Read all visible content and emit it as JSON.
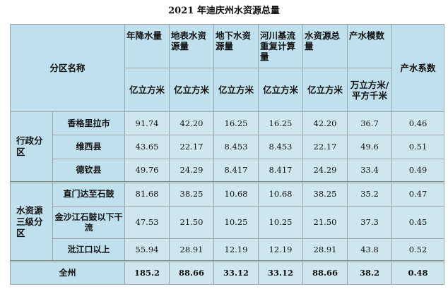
{
  "title": "2021 年迪庆州水资源总量",
  "header": {
    "region_label": "分区名称",
    "columns": [
      {
        "name": "年降水量",
        "unit": "亿立方米"
      },
      {
        "name": "地表水资源量",
        "unit": "亿立方米"
      },
      {
        "name": "地下水资源量",
        "unit": "亿立方米"
      },
      {
        "name": "河川基流重复计算量",
        "unit": "亿立方米"
      },
      {
        "name": "水资源总量",
        "unit": "亿立方米"
      },
      {
        "name": "产水模数",
        "unit": "万立方米/平方千米"
      },
      {
        "name": "产水系数",
        "unit": ""
      }
    ]
  },
  "groups": [
    {
      "label": "行政分区",
      "rows": [
        {
          "name": "香格里拉市",
          "values": [
            "91.74",
            "42.20",
            "16.25",
            "16.25",
            "42.20",
            "36.7",
            "0.46"
          ]
        },
        {
          "name": "维西县",
          "values": [
            "43.65",
            "22.17",
            "8.453",
            "8.453",
            "22.17",
            "49.6",
            "0.51"
          ]
        },
        {
          "name": "德钦县",
          "values": [
            "49.76",
            "24.29",
            "8.417",
            "8.417",
            "24.29",
            "33.4",
            "0.49"
          ]
        }
      ]
    },
    {
      "label": "水资源三级分区",
      "rows": [
        {
          "name": "直门达至石鼓",
          "values": [
            "81.68",
            "38.25",
            "10.68",
            "10.68",
            "38.25",
            "35.2",
            "0.47"
          ]
        },
        {
          "name": "金沙江石鼓以下干流",
          "values": [
            "47.53",
            "21.50",
            "10.25",
            "10.25",
            "21.50",
            "37.3",
            "0.45"
          ]
        },
        {
          "name": "沘江口以上",
          "values": [
            "55.94",
            "28.91",
            "12.19",
            "12.19",
            "28.91",
            "43.8",
            "0.52"
          ]
        }
      ]
    }
  ],
  "total": {
    "name": "全州",
    "values": [
      "185.2",
      "88.66",
      "33.12",
      "33.12",
      "88.66",
      "38.2",
      "0.48"
    ]
  }
}
